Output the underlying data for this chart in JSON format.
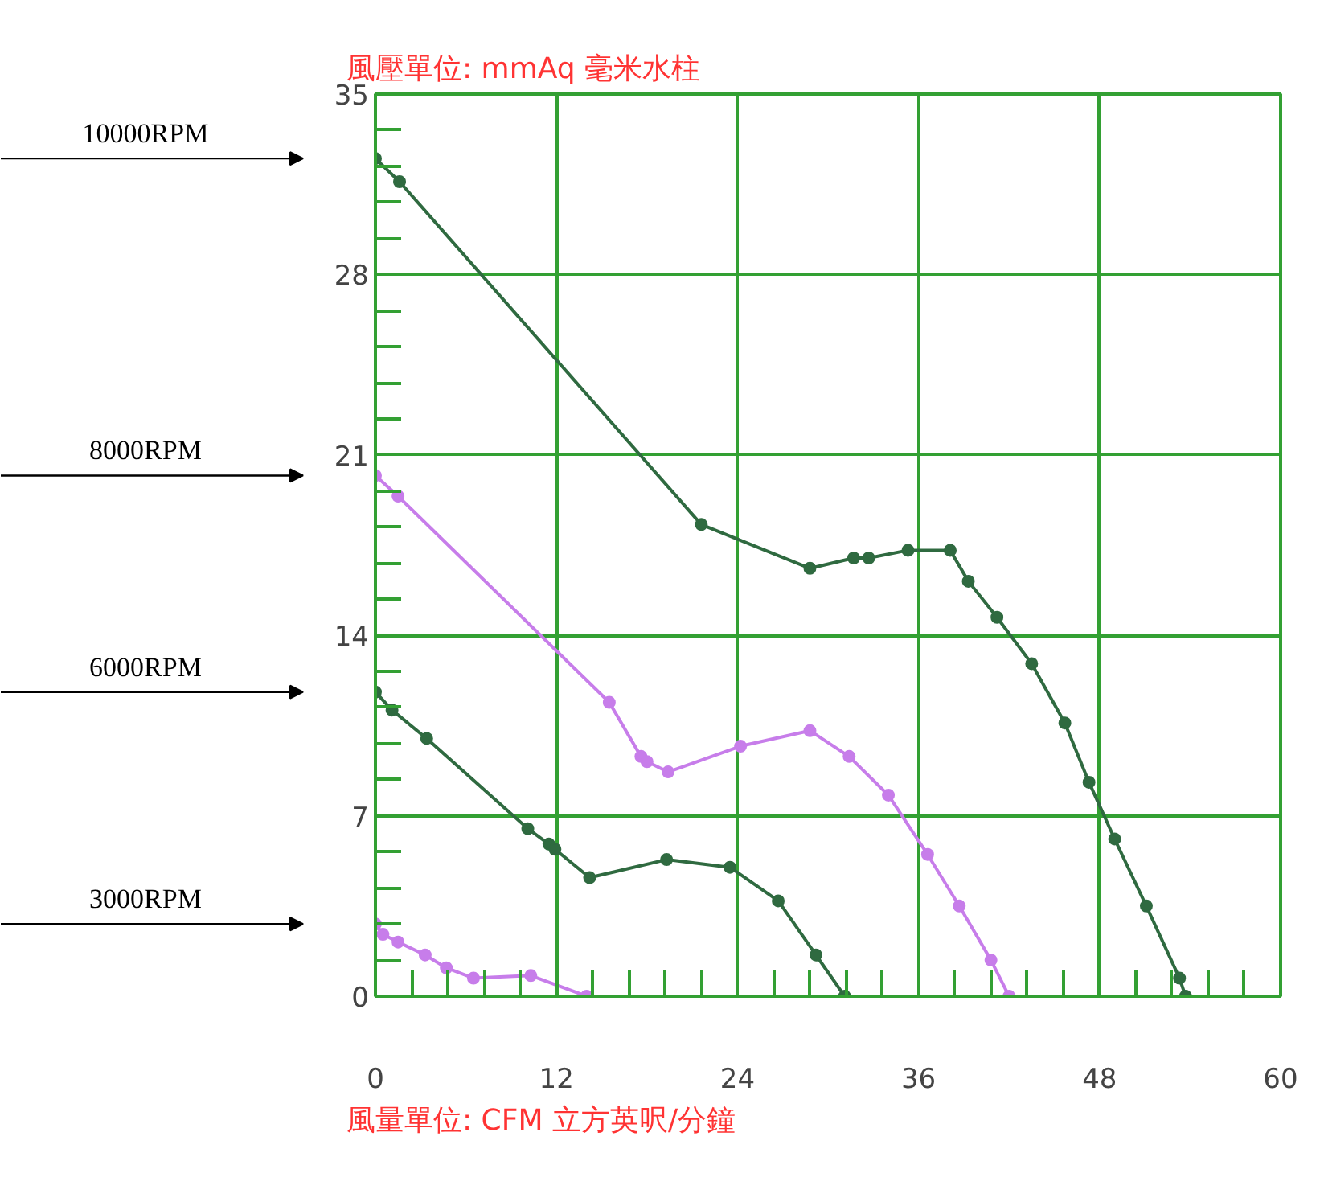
{
  "chart_data": {
    "type": "line",
    "ylabel": "風壓單位:  mmAq 毫米水柱",
    "xlabel": "風量單位:     CFM 立方英呎/分鐘",
    "xlim": [
      0,
      60
    ],
    "xticks": [
      0,
      {
        "value": 2.4,
        "label": null
      },
      {
        "value": 4.8,
        "label": null
      },
      {
        "value": 7.2,
        "label": null
      },
      {
        "value": 9.6,
        "label": null
      },
      12,
      {
        "value": 14.4,
        "label": null
      },
      {
        "value": 16.8,
        "label": null
      },
      {
        "value": 19.2,
        "label": null
      },
      {
        "value": 21.6,
        "label": null
      },
      24,
      {
        "value": 26.4,
        "label": null
      },
      {
        "value": 28.8,
        "label": null
      },
      {
        "value": 31.2,
        "label": null
      },
      {
        "value": 33.6,
        "label": null
      },
      36,
      {
        "value": 38.4,
        "label": null
      },
      {
        "value": 40.8,
        "label": null
      },
      {
        "value": 43.2,
        "label": null
      },
      {
        "value": 45.6,
        "label": null
      },
      48,
      {
        "value": 50.4,
        "label": null
      },
      {
        "value": 52.8,
        "label": null
      },
      {
        "value": 55.2,
        "label": null
      },
      {
        "value": 57.6,
        "label": null
      },
      60
    ],
    "ylim": [
      0,
      35
    ],
    "yticks": [
      0,
      {
        "value": 1.4,
        "label": null
      },
      {
        "value": 2.8,
        "label": null
      },
      {
        "value": 4.2,
        "label": null
      },
      {
        "value": 5.6,
        "label": null
      },
      7,
      {
        "value": 8.4,
        "label": null
      },
      {
        "value": 9.8,
        "label": null
      },
      {
        "value": 11.2,
        "label": null
      },
      {
        "value": 12.6,
        "label": null
      },
      14,
      {
        "value": 15.4,
        "label": null
      },
      {
        "value": 16.8,
        "label": null
      },
      {
        "value": 18.2,
        "label": null
      },
      {
        "value": 19.6,
        "label": null
      },
      21,
      {
        "value": 22.4,
        "label": null
      },
      {
        "value": 23.8,
        "label": null
      },
      {
        "value": 25.2,
        "label": null
      },
      {
        "value": 26.6,
        "label": null
      },
      28,
      {
        "value": 29.4,
        "label": null
      },
      {
        "value": 30.8,
        "label": null
      },
      {
        "value": 32.2,
        "label": null
      },
      {
        "value": 33.6,
        "label": null
      },
      35
    ],
    "grid": true,
    "marker": "circle",
    "line_style": "solid",
    "series": [
      {
        "color": "#2f6a40",
        "x": [
          0,
          1.6,
          21.6,
          28.8,
          31.7,
          32.7,
          35.3,
          38.1,
          39.3,
          41.2,
          43.5,
          45.7,
          47.3,
          49.0,
          51.1,
          53.3,
          53.7
        ],
        "values": [
          32.5,
          31.6,
          18.3,
          16.6,
          17.0,
          17.0,
          17.3,
          17.3,
          16.1,
          14.7,
          12.9,
          10.6,
          8.3,
          6.1,
          3.5,
          0.7,
          0
        ]
      },
      {
        "color": "#c77dea",
        "x": [
          0,
          1.5,
          15.5,
          17.6,
          18.0,
          19.4,
          24.2,
          28.8,
          31.4,
          34.0,
          36.6,
          38.7,
          40.8,
          42.0
        ],
        "values": [
          20.2,
          19.4,
          11.4,
          9.3,
          9.1,
          8.7,
          9.7,
          10.3,
          9.3,
          7.8,
          5.5,
          3.5,
          1.4,
          0
        ]
      },
      {
        "color": "#2f6a40",
        "x": [
          0,
          1.1,
          3.4,
          10.1,
          11.5,
          11.9,
          14.2,
          19.3,
          23.5,
          26.7,
          29.2,
          31.1
        ],
        "values": [
          11.8,
          11.1,
          10.0,
          6.5,
          5.9,
          5.7,
          4.6,
          5.3,
          5.0,
          3.7,
          1.6,
          0
        ]
      },
      {
        "color": "#c77dea",
        "x": [
          0,
          0.5,
          1.5,
          3.3,
          4.7,
          6.5,
          10.3,
          14.0
        ],
        "values": [
          2.8,
          2.4,
          2.1,
          1.6,
          1.1,
          0.7,
          0.8,
          0
        ]
      }
    ],
    "annotations": [
      "10000RPM",
      "8000RPM",
      "6000RPM",
      "3000RPM"
    ]
  }
}
